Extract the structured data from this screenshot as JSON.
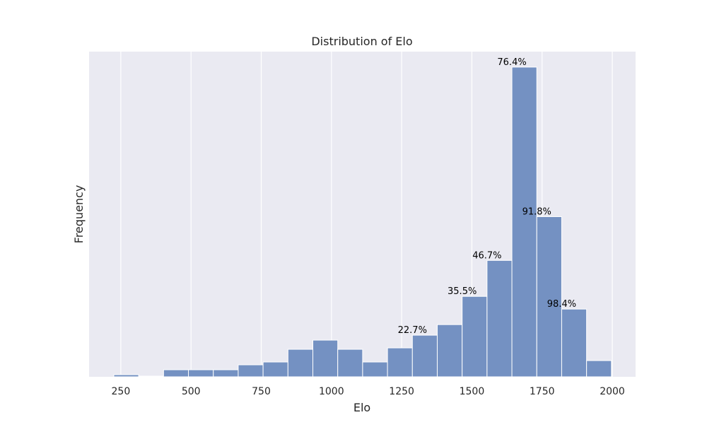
{
  "chart_data": {
    "type": "bar",
    "title": "Distribution of Elo",
    "xlabel": "Elo",
    "ylabel": "Frequency",
    "xlim": [
      137,
      2083
    ],
    "x_ticks": [
      250,
      500,
      750,
      1000,
      1250,
      1500,
      1750,
      2000
    ],
    "y_ticks_shown": false,
    "grid": "vertical",
    "bin_start": 225,
    "bin_end": 1997,
    "values": [
      3,
      1,
      10,
      10,
      10,
      17,
      21,
      39,
      52,
      39,
      21,
      41,
      59,
      74,
      114,
      165,
      439,
      227,
      96,
      23
    ],
    "annotations": [
      {
        "bin": 12,
        "text": "22.7%"
      },
      {
        "bin": 14,
        "text": "35.5%"
      },
      {
        "bin": 15,
        "text": "46.7%"
      },
      {
        "bin": 16,
        "text": "76.4%"
      },
      {
        "bin": 17,
        "text": "91.8%"
      },
      {
        "bin": 18,
        "text": "98.4%"
      }
    ],
    "colors": {
      "bar": "#7491c2",
      "bar_edge": "#ffffff",
      "background": "#eaeaf2",
      "grid": "#ffffff"
    }
  }
}
